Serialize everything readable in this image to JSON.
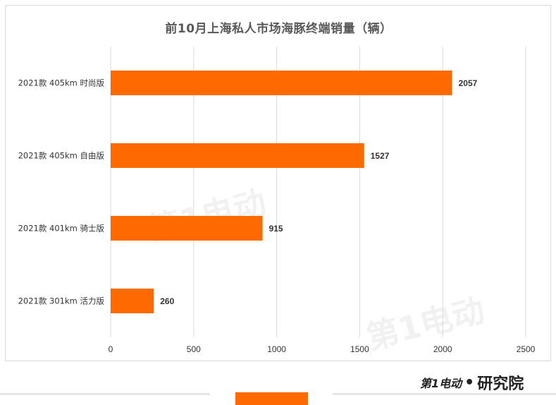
{
  "colors": {
    "bar": "#ff6a00",
    "grid": "#d9d9d9",
    "text": "#333333",
    "title": "#595959"
  },
  "watermark": {
    "logo_text": "第1电动"
  },
  "brand": {
    "logo": "第1电动",
    "separator": "•",
    "name": "研究院"
  },
  "chart_data": {
    "type": "bar",
    "orientation": "horizontal",
    "title": "前10月上海私人市场海豚终端销量（辆）",
    "categories": [
      "2021款 405km 时尚版",
      "2021款 405km 自由版",
      "2021款 401km 骑士版",
      "2021款 301km 活力版"
    ],
    "values": [
      2057,
      1527,
      915,
      260
    ],
    "xlim": [
      0,
      2500
    ],
    "xticks": [
      0,
      500,
      1000,
      1500,
      2000,
      2500
    ],
    "grid": true,
    "legend": "none",
    "xlabel": "",
    "ylabel": ""
  }
}
